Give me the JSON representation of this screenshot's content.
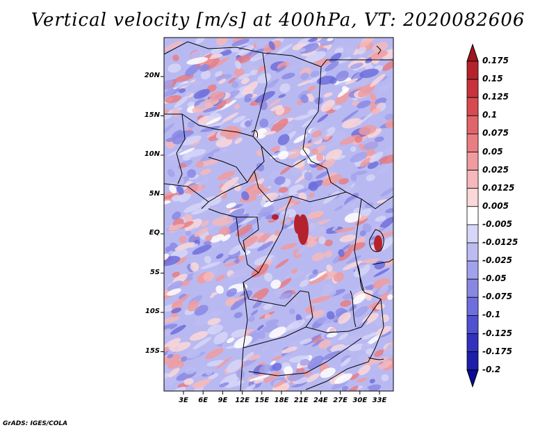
{
  "title": "Vertical velocity [m/s] at 400hPa, VT: 2020082606",
  "footer": "GrADS: IGES/COLA",
  "map": {
    "latitude_labels": [
      "20N",
      "15N",
      "10N",
      "5N",
      "EQ",
      "5S",
      "10S",
      "15S"
    ],
    "longitude_labels": [
      "3E",
      "6E",
      "9E",
      "12E",
      "15E",
      "18E",
      "21E",
      "24E",
      "27E",
      "30E",
      "33E"
    ],
    "lon_range": [
      0,
      35
    ],
    "lat_range": [
      -20,
      24
    ]
  },
  "colorbar": {
    "labels": [
      "0.175",
      "0.15",
      "0.125",
      "0.1",
      "0.075",
      "0.05",
      "0.025",
      "0.0125",
      "0.005",
      "-0.005",
      "-0.0125",
      "-0.025",
      "-0.05",
      "-0.075",
      "-0.1",
      "-0.125",
      "-0.175",
      "-0.2"
    ],
    "colors": [
      "#a0141e",
      "#b4232d",
      "#c8323c",
      "#d74b50",
      "#e1646a",
      "#e87d82",
      "#f09b9e",
      "#f5b9bb",
      "#fad7d8",
      "#ffffff",
      "#d6d6f8",
      "#bcbcf2",
      "#a2a2ec",
      "#8888e4",
      "#6e6edc",
      "#5050d0",
      "#3232be",
      "#1e1eaa",
      "#0a0a96"
    ]
  }
}
